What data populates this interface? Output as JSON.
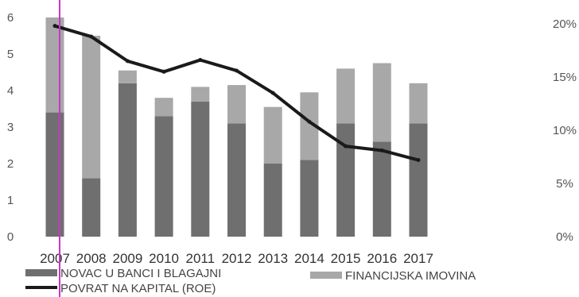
{
  "chart_data": {
    "type": "bar",
    "stacked": true,
    "categories": [
      "2007",
      "2008",
      "2009",
      "2010",
      "2011",
      "2012",
      "2013",
      "2014",
      "2015",
      "2016",
      "2017"
    ],
    "series": [
      {
        "name": "NOVAC U BANCI I BLAGAJNI",
        "axis": "left",
        "type": "bar",
        "color": "#6f6f6f",
        "values": [
          3.4,
          1.6,
          4.2,
          3.3,
          3.7,
          3.1,
          2.0,
          2.1,
          3.1,
          2.6,
          3.1
        ]
      },
      {
        "name": "FINANCIJSKA IMOVINA",
        "axis": "left",
        "type": "bar",
        "color": "#a8a8a8",
        "values": [
          2.6,
          3.9,
          0.35,
          0.5,
          0.4,
          1.05,
          1.55,
          1.85,
          1.5,
          2.15,
          1.1
        ]
      },
      {
        "name": "POVRAT NA KAPITAL (ROE)",
        "axis": "right",
        "type": "line",
        "color": "#1a1a1a",
        "values": [
          19.8,
          18.8,
          16.5,
          15.5,
          16.6,
          15.6,
          13.5,
          10.8,
          8.5,
          8.1,
          7.2
        ]
      }
    ],
    "y_left": {
      "min": 0,
      "max": 6,
      "ticks": [
        "0",
        "1",
        "2",
        "3",
        "4",
        "5",
        "6"
      ]
    },
    "y_right": {
      "min": 0,
      "max": 20,
      "ticks": [
        "0%",
        "5%",
        "10%",
        "15%",
        "20%"
      ]
    },
    "legend_position": "bottom",
    "grid": false,
    "title": "",
    "xlabel": "",
    "ylabel": ""
  },
  "cursor_color": "#cc33cc"
}
